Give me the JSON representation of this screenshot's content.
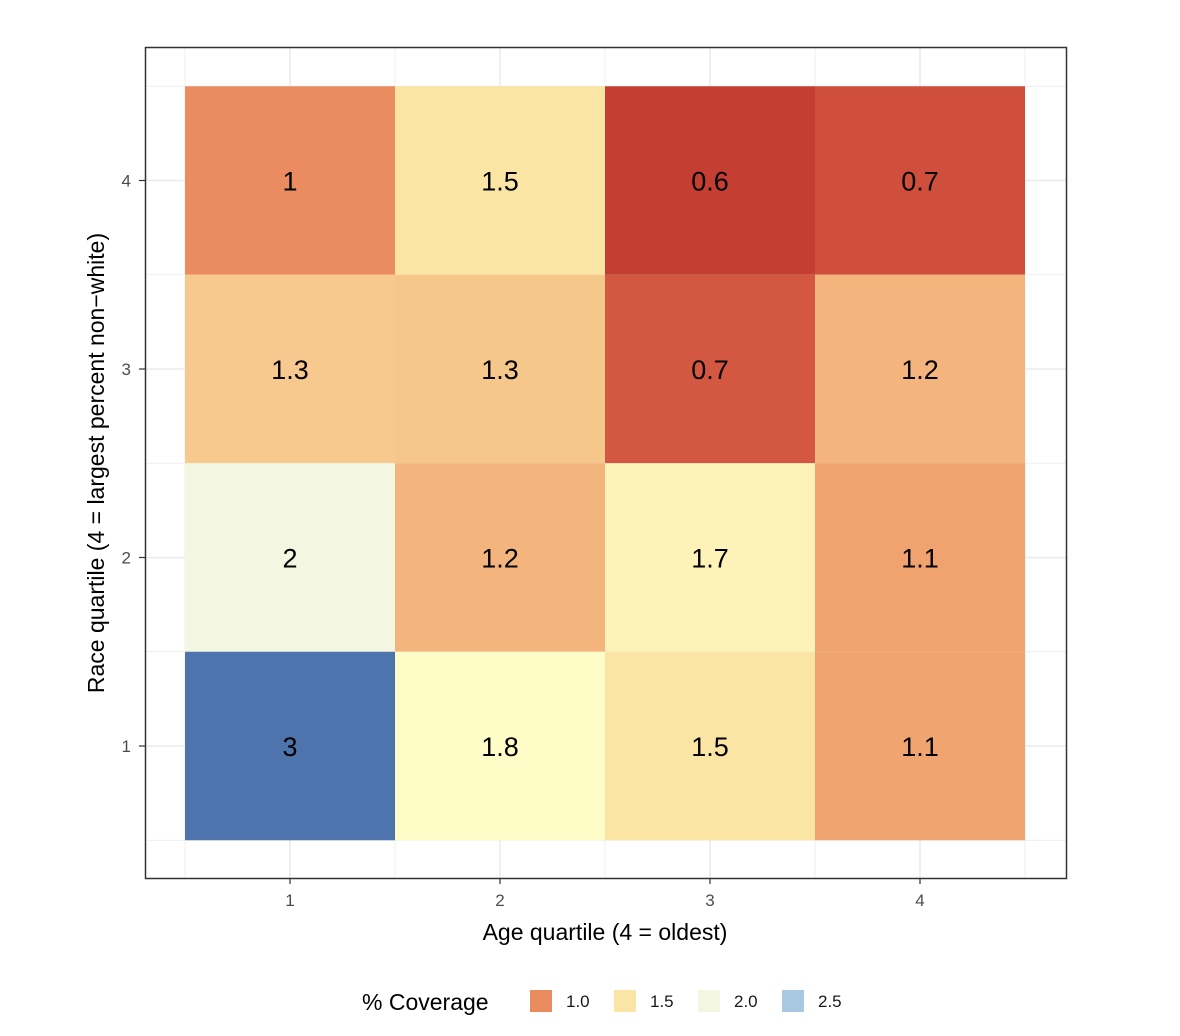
{
  "chart_data": {
    "type": "heatmap",
    "xlabel": "Age quartile (4 = oldest)",
    "ylabel": "Race quartile (4 = largest percent non−white)",
    "x_categories": [
      "1",
      "2",
      "3",
      "4"
    ],
    "y_categories": [
      "1",
      "2",
      "3",
      "4"
    ],
    "cells": [
      {
        "x": "1",
        "y": "4",
        "value": 1.0,
        "label": "1",
        "color": "#eb8c60"
      },
      {
        "x": "2",
        "y": "4",
        "value": 1.5,
        "label": "1.5",
        "color": "#fae5a5"
      },
      {
        "x": "3",
        "y": "4",
        "value": 0.6,
        "label": "0.6",
        "color": "#c43e31"
      },
      {
        "x": "4",
        "y": "4",
        "value": 0.7,
        "label": "0.7",
        "color": "#cf4f3c"
      },
      {
        "x": "1",
        "y": "3",
        "value": 1.3,
        "label": "1.3",
        "color": "#f7c98e"
      },
      {
        "x": "2",
        "y": "3",
        "value": 1.3,
        "label": "1.3",
        "color": "#f6c78b"
      },
      {
        "x": "3",
        "y": "3",
        "value": 0.7,
        "label": "0.7",
        "color": "#d45841"
      },
      {
        "x": "4",
        "y": "3",
        "value": 1.2,
        "label": "1.2",
        "color": "#f4b47d"
      },
      {
        "x": "1",
        "y": "2",
        "value": 2.0,
        "label": "2",
        "color": "#f3f7e1"
      },
      {
        "x": "2",
        "y": "2",
        "value": 1.2,
        "label": "1.2",
        "color": "#f4b47d"
      },
      {
        "x": "3",
        "y": "2",
        "value": 1.7,
        "label": "1.7",
        "color": "#fdf2b7"
      },
      {
        "x": "4",
        "y": "2",
        "value": 1.1,
        "label": "1.1",
        "color": "#f0a26f"
      },
      {
        "x": "1",
        "y": "1",
        "value": 3.0,
        "label": "3",
        "color": "#4d74ad"
      },
      {
        "x": "2",
        "y": "1",
        "value": 1.8,
        "label": "1.8",
        "color": "#fefdc7"
      },
      {
        "x": "3",
        "y": "1",
        "value": 1.5,
        "label": "1.5",
        "color": "#fae5a5"
      },
      {
        "x": "4",
        "y": "1",
        "value": 1.1,
        "label": "1.1",
        "color": "#f0a570"
      }
    ],
    "legend": {
      "title": "% Coverage",
      "position": "bottom",
      "items": [
        {
          "label": "1.0",
          "color": "#eb8c60"
        },
        {
          "label": "1.5",
          "color": "#fae5a5"
        },
        {
          "label": "2.0",
          "color": "#f3f7e1"
        },
        {
          "label": "2.5",
          "color": "#a9c9e2"
        }
      ]
    },
    "grid": true,
    "background": "#ffffff",
    "gridline_color": "#ebebeb",
    "panel_border_color": "#333333"
  }
}
